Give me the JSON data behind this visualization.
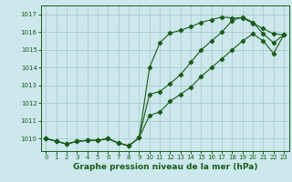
{
  "background_color": "#cce8ec",
  "grid_color": "#aacccc",
  "line_color": "#1a5c1a",
  "title": "Graphe pression niveau de la mer (hPa)",
  "title_fontsize": 6.5,
  "xlim": [
    -0.5,
    23.5
  ],
  "ylim": [
    1009.3,
    1017.5
  ],
  "yticks": [
    1010,
    1011,
    1012,
    1013,
    1014,
    1015,
    1016,
    1017
  ],
  "xticks": [
    0,
    1,
    2,
    3,
    4,
    5,
    6,
    7,
    8,
    9,
    10,
    11,
    12,
    13,
    14,
    15,
    16,
    17,
    18,
    19,
    20,
    21,
    22,
    23
  ],
  "series1_x": [
    0,
    1,
    2,
    3,
    4,
    5,
    6,
    7,
    8,
    9,
    10,
    11,
    12,
    13,
    14,
    15,
    16,
    17,
    18,
    19,
    20,
    21,
    22,
    23
  ],
  "series1_y": [
    1010.0,
    1009.85,
    1009.7,
    1009.85,
    1009.9,
    1009.9,
    1010.0,
    1009.75,
    1009.6,
    1010.05,
    1011.3,
    1011.5,
    1012.1,
    1012.5,
    1012.9,
    1013.5,
    1014.0,
    1014.5,
    1015.0,
    1015.5,
    1015.9,
    1015.5,
    1014.8,
    1015.85
  ],
  "series2_x": [
    0,
    1,
    2,
    3,
    4,
    5,
    6,
    7,
    8,
    9,
    10,
    11,
    12,
    13,
    14,
    15,
    16,
    17,
    18,
    19,
    20,
    21,
    22,
    23
  ],
  "series2_y": [
    1010.0,
    1009.85,
    1009.7,
    1009.85,
    1009.9,
    1009.9,
    1010.0,
    1009.75,
    1009.6,
    1010.05,
    1014.0,
    1015.4,
    1015.95,
    1016.1,
    1016.3,
    1016.55,
    1016.7,
    1016.85,
    1016.8,
    1016.8,
    1016.5,
    1016.2,
    1015.9,
    1015.85
  ],
  "series3_x": [
    0,
    1,
    2,
    3,
    4,
    5,
    6,
    7,
    8,
    9,
    10,
    11,
    12,
    13,
    14,
    15,
    16,
    17,
    18,
    19,
    20,
    21,
    22,
    23
  ],
  "series3_y": [
    1010.0,
    1009.85,
    1009.7,
    1009.85,
    1009.9,
    1009.9,
    1010.0,
    1009.75,
    1009.6,
    1010.05,
    1012.5,
    1012.65,
    1013.1,
    1013.6,
    1014.3,
    1015.0,
    1015.5,
    1016.0,
    1016.65,
    1016.85,
    1016.55,
    1015.9,
    1015.4,
    1015.85
  ]
}
